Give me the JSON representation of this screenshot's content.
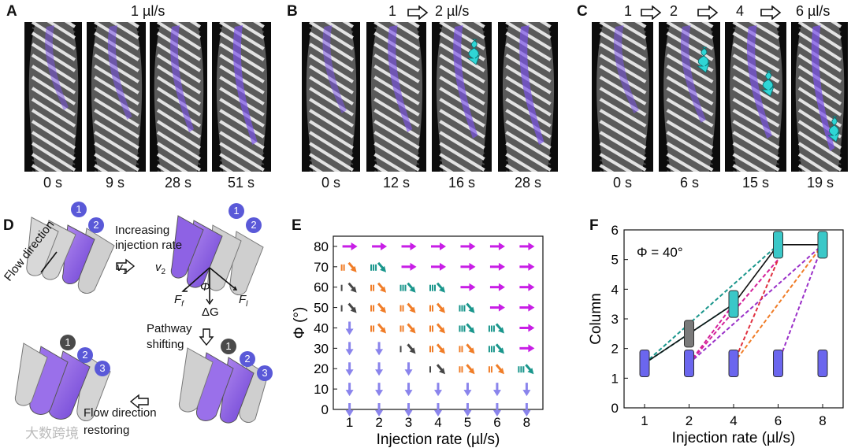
{
  "panels": {
    "A": {
      "label": "A",
      "title": "1 µl/s",
      "times": [
        "0 s",
        "9 s",
        "28 s",
        "51 s"
      ]
    },
    "B": {
      "label": "B",
      "title_from": "1",
      "title_to": "2 µl/s",
      "times": [
        "0 s",
        "12 s",
        "16 s",
        "28 s"
      ]
    },
    "C": {
      "label": "C",
      "rates": [
        "1",
        "2",
        "4",
        "6 µl/s"
      ],
      "times": [
        "0 s",
        "6 s",
        "15 s",
        "19 s"
      ]
    },
    "D": {
      "label": "D",
      "flow_direction": "Flow direction",
      "increasing": "Increasing injection rate",
      "v1": "v",
      "v1_sub": "1",
      "v2": "v",
      "v2_sub": "2",
      "phi": "Φ",
      "ff": "F",
      "ff_sub": "f",
      "fl": "F",
      "fl_sub": "l",
      "dg": "ΔG",
      "pathway_shifting": "Pathway shifting",
      "flow_restoring": "Flow direction restoring",
      "badges": [
        "1",
        "2",
        "3"
      ]
    },
    "E": {
      "label": "E"
    },
    "F": {
      "label": "F"
    }
  },
  "colors": {
    "dye": "#7b52e8",
    "magenta": "#c81ee6",
    "teal": "#1a968c",
    "orange": "#f07d28",
    "gray": "#464646",
    "lavender": "#8a84ec",
    "cyan": "#2fd6d6",
    "blue_box": "#6b66ee",
    "gray_box": "#7a7a7a",
    "badge_blue": "#5a59d8",
    "badge_gray": "#4a4a4a"
  },
  "watermark": "大数跨境",
  "chart_data": [
    {
      "type": "scatter",
      "panel": "E",
      "xlabel": "Injection rate (µl/s)",
      "ylabel": "Φ (°)",
      "x_categories": [
        "1",
        "2",
        "3",
        "4",
        "5",
        "6",
        "8"
      ],
      "yticks": [
        "0",
        "10",
        "20",
        "30",
        "40",
        "50",
        "60",
        "70",
        "80"
      ],
      "ylim": [
        0,
        85
      ],
      "rows": [
        {
          "phi": 80,
          "symbols": [
            "magenta",
            "magenta",
            "magenta",
            "magenta",
            "magenta",
            "magenta",
            "magenta"
          ]
        },
        {
          "phi": 70,
          "symbols": [
            "orange",
            "teal",
            "magenta",
            "magenta",
            "magenta",
            "magenta",
            "magenta"
          ]
        },
        {
          "phi": 60,
          "symbols": [
            "gray",
            "orange",
            "teal",
            "teal",
            "magenta",
            "magenta",
            "magenta"
          ]
        },
        {
          "phi": 50,
          "symbols": [
            "gray",
            "orange",
            "orange",
            "orange",
            "teal",
            "magenta",
            "magenta"
          ]
        },
        {
          "phi": 40,
          "symbols": [
            "lavender",
            "orange",
            "orange",
            "orange",
            "teal",
            "teal",
            "magenta"
          ]
        },
        {
          "phi": 30,
          "symbols": [
            "lavender",
            "lavender",
            "gray",
            "orange",
            "orange",
            "teal",
            "magenta"
          ]
        },
        {
          "phi": 20,
          "symbols": [
            "lavender",
            "lavender",
            "lavender",
            "gray",
            "orange",
            "orange",
            "teal"
          ]
        },
        {
          "phi": 10,
          "symbols": [
            "lavender",
            "lavender",
            "lavender",
            "lavender",
            "lavender",
            "lavender",
            "lavender"
          ]
        },
        {
          "phi": 0,
          "symbols": [
            "lavender",
            "lavender",
            "lavender",
            "lavender",
            "lavender",
            "lavender",
            "lavender"
          ]
        }
      ]
    },
    {
      "type": "line",
      "panel": "F",
      "annotation": "Φ = 40°",
      "xlabel": "Injection rate (µl/s)",
      "ylabel": "Column",
      "x_categories": [
        "1",
        "2",
        "4",
        "6",
        "8"
      ],
      "yticks": [
        "0",
        "1",
        "2",
        "3",
        "4",
        "5",
        "6"
      ],
      "ylim": [
        0,
        6
      ],
      "columns": [
        {
          "x": "1",
          "boxes": [
            {
              "y": 1.5,
              "color": "blue"
            }
          ]
        },
        {
          "x": "2",
          "boxes": [
            {
              "y": 1.5,
              "color": "blue"
            },
            {
              "y": 2.5,
              "color": "gray"
            }
          ]
        },
        {
          "x": "4",
          "boxes": [
            {
              "y": 1.5,
              "color": "blue"
            },
            {
              "y": 3.5,
              "color": "teal"
            }
          ]
        },
        {
          "x": "6",
          "boxes": [
            {
              "y": 1.5,
              "color": "blue"
            },
            {
              "y": 5.5,
              "color": "teal"
            }
          ]
        },
        {
          "x": "8",
          "boxes": [
            {
              "y": 1.5,
              "color": "blue"
            },
            {
              "y": 5.5,
              "color": "teal"
            }
          ]
        }
      ],
      "solid_path": [
        [
          "1",
          1.5
        ],
        [
          "2",
          2.5
        ],
        [
          "4",
          3.5
        ],
        [
          "6",
          5.5
        ],
        [
          "8",
          5.5
        ]
      ],
      "dashed_links": [
        {
          "from": [
            "1",
            1.5
          ],
          "to": [
            "4",
            3.5
          ],
          "color": "teal"
        },
        {
          "from": [
            "1",
            1.5
          ],
          "to": [
            "6",
            5.5
          ],
          "color": "teal"
        },
        {
          "from": [
            "2",
            1.5
          ],
          "to": [
            "4",
            3.5
          ],
          "color": "magenta"
        },
        {
          "from": [
            "2",
            1.5
          ],
          "to": [
            "6",
            5.0
          ],
          "color": "magenta"
        },
        {
          "from": [
            "2",
            1.5
          ],
          "to": [
            "8",
            5.5
          ],
          "color": "purple"
        },
        {
          "from": [
            "4",
            1.5
          ],
          "to": [
            "6",
            5.0
          ],
          "color": "red"
        },
        {
          "from": [
            "4",
            1.5
          ],
          "to": [
            "8",
            5.5
          ],
          "color": "orange"
        },
        {
          "from": [
            "6",
            1.5
          ],
          "to": [
            "8",
            5.5
          ],
          "color": "purple"
        }
      ]
    }
  ]
}
